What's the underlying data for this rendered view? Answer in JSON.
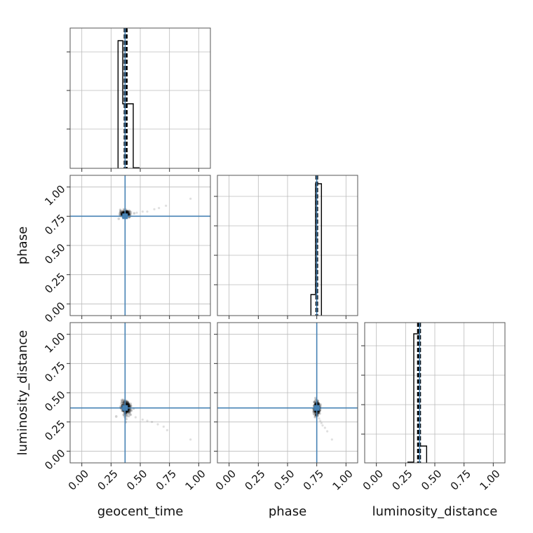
{
  "chart_data": {
    "type": "corner",
    "parameters": [
      "geocent_time",
      "phase",
      "luminosity_distance"
    ],
    "axis_range": [
      -0.1,
      1.1
    ],
    "tick_values": [
      0.0,
      0.25,
      0.5,
      0.75,
      1.0
    ],
    "tick_labels": [
      "0.00",
      "0.25",
      "0.50",
      "0.75",
      "1.00"
    ],
    "grid": true,
    "truths": {
      "geocent_time": 0.37,
      "phase": 0.75,
      "luminosity_distance": 0.37
    },
    "truth_color": "#4682b4",
    "colors": {
      "hist": "#000000",
      "samples": "#000000",
      "grid": "#bbbbbb",
      "frame": "#555555"
    },
    "histograms": [
      {
        "parameter": "geocent_time",
        "bins": [
          {
            "x0": 0.31,
            "x1": 0.35,
            "density": 0.91
          },
          {
            "x0": 0.35,
            "x1": 0.44,
            "density": 0.46
          },
          {
            "x0": 0.44,
            "x1": 0.49,
            "density": 0.004
          }
        ],
        "quantiles": [
          0.365,
          0.375,
          0.385
        ]
      },
      {
        "parameter": "phase",
        "bins": [
          {
            "x0": 0.7,
            "x1": 0.74,
            "density": 0.15
          },
          {
            "x0": 0.74,
            "x1": 0.79,
            "density": 0.94
          }
        ],
        "quantiles": [
          0.745,
          0.75,
          0.755
        ]
      },
      {
        "parameter": "luminosity_distance",
        "bins": [
          {
            "x0": 0.27,
            "x1": 0.32,
            "density": 0.005
          },
          {
            "x0": 0.32,
            "x1": 0.37,
            "density": 0.92
          },
          {
            "x0": 0.37,
            "x1": 0.43,
            "density": 0.12
          }
        ],
        "quantiles": [
          0.355,
          0.365,
          0.375
        ]
      }
    ],
    "scatter_panels": [
      {
        "x": "geocent_time",
        "y": "phase",
        "core": {
          "x": 0.37,
          "y": 0.77,
          "sx": 0.02,
          "sy": 0.012
        },
        "tail": [
          [
            0.42,
            0.77
          ],
          [
            0.47,
            0.78
          ],
          [
            0.52,
            0.79
          ],
          [
            0.56,
            0.79
          ],
          [
            0.62,
            0.81
          ],
          [
            0.66,
            0.82
          ],
          [
            0.72,
            0.84
          ],
          [
            0.93,
            0.9
          ]
        ]
      },
      {
        "x": "geocent_time",
        "y": "luminosity_distance",
        "core": {
          "x": 0.38,
          "y": 0.37,
          "sx": 0.02,
          "sy": 0.03
        },
        "tail": [
          [
            0.42,
            0.31
          ],
          [
            0.46,
            0.29
          ],
          [
            0.52,
            0.27
          ],
          [
            0.56,
            0.26
          ],
          [
            0.6,
            0.25
          ],
          [
            0.65,
            0.23
          ],
          [
            0.7,
            0.21
          ],
          [
            0.73,
            0.18
          ],
          [
            0.93,
            0.1
          ]
        ]
      },
      {
        "x": "phase",
        "y": "luminosity_distance",
        "core": {
          "x": 0.75,
          "y": 0.37,
          "sx": 0.012,
          "sy": 0.03
        },
        "tail": [
          [
            0.76,
            0.31
          ],
          [
            0.77,
            0.28
          ],
          [
            0.78,
            0.26
          ],
          [
            0.79,
            0.24
          ],
          [
            0.8,
            0.22
          ],
          [
            0.82,
            0.2
          ],
          [
            0.84,
            0.17
          ],
          [
            0.88,
            0.1
          ]
        ]
      }
    ]
  }
}
